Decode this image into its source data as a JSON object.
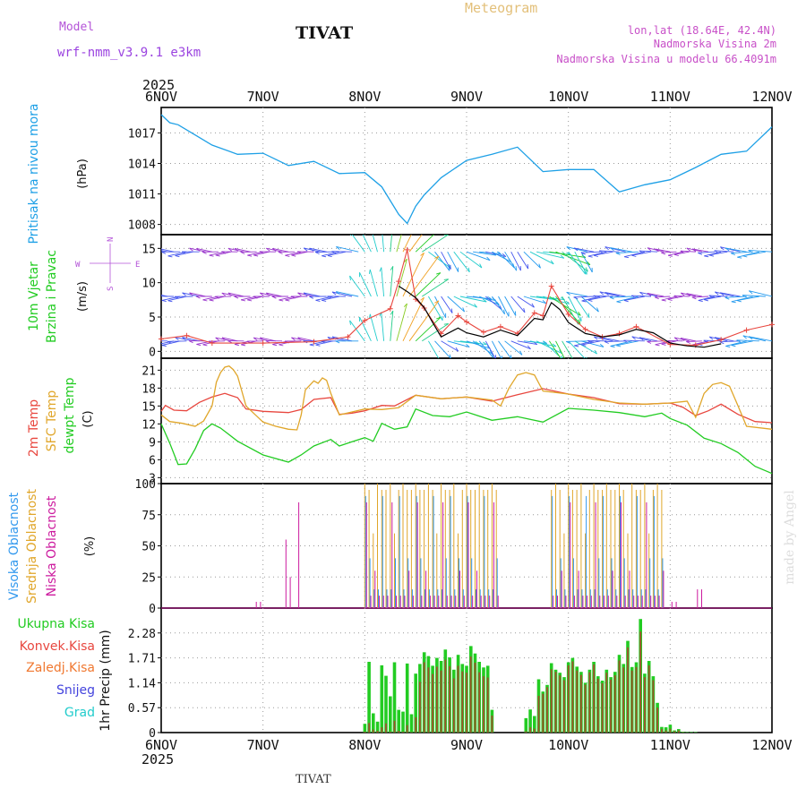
{
  "header": {
    "model_label": "Model",
    "model_name": "wrf-nmm_v3.9.1 e3km",
    "station": "TIVAT",
    "chart_title": "Meteogram",
    "lonlat": "lon,lat (18.64E, 42.4N)",
    "altitude": "Nadmorska Visina 2m",
    "model_altitude": "Nadmorska Visina u modelu 66.4091m"
  },
  "time_axis": {
    "year": "2025",
    "labels": [
      "6NOV",
      "7NOV",
      "8NOV",
      "9NOV",
      "10NOV",
      "11NOV",
      "12NOV"
    ]
  },
  "footer": {
    "station": "TIVAT",
    "credit": "made by Angel"
  },
  "colors": {
    "pressure": "#1ea0e6",
    "wind_green": "#22cc22",
    "temp2m": "#e8473f",
    "sfc": "#e0a62a",
    "dew": "#22cc22",
    "high_cloud": "#3399ee",
    "mid_cloud": "#e0a62a",
    "low_cloud": "#cc1a9e",
    "precip": "#22cc22",
    "convective": "#e8473f",
    "frozen": "#f07830",
    "snow": "#4444dd",
    "hail": "#22cccc",
    "wind_purple": "#9933cc",
    "ws10": "#e8473f",
    "gust": "#000000"
  },
  "chart_data": [
    {
      "type": "line",
      "title": "Pritisak na nivou mora",
      "ylabel": "(hPa)",
      "yticks": [
        "1008",
        "1011",
        "1014",
        "1017"
      ],
      "ylim": [
        1007,
        1019.5
      ],
      "x_hours": [
        0,
        2,
        4,
        8,
        12,
        18,
        24,
        30,
        36,
        42,
        48,
        52,
        56,
        58,
        60,
        62,
        66,
        72,
        78,
        84,
        90,
        96,
        102,
        108,
        114,
        120,
        126,
        132,
        138,
        144
      ],
      "values": [
        1018.8,
        1018,
        1017.8,
        1016.8,
        1015.8,
        1014.9,
        1015,
        1013.8,
        1014.2,
        1013,
        1013.1,
        1011.7,
        1009,
        1008.1,
        1009.8,
        1010.9,
        1012.6,
        1014.3,
        1014.9,
        1015.6,
        1013.2,
        1013.4,
        1013.4,
        1011.2,
        1011.9,
        1012.4,
        1013.6,
        1014.9,
        1015.2,
        1017.6
      ]
    },
    {
      "type": "line",
      "title": "10m Vjetar",
      "subtitle": "Brzina i Pravac",
      "ylabel": "(m/s)",
      "yticks": [
        "0",
        "5",
        "10",
        "15"
      ],
      "ylim": [
        -1,
        17
      ],
      "compass": [
        "N",
        "E",
        "S",
        "W"
      ],
      "x_hours": [
        0,
        6,
        12,
        24,
        36,
        44,
        48,
        54,
        56,
        58,
        60,
        62,
        66,
        70,
        72,
        76,
        80,
        84,
        88,
        90,
        92,
        96,
        100,
        104,
        108,
        112,
        120,
        126,
        132,
        138,
        144
      ],
      "speed": [
        1.8,
        2.3,
        1.2,
        1.2,
        1.4,
        2.1,
        4.5,
        6.2,
        10.2,
        14.8,
        7.6,
        6.3,
        2.6,
        5.2,
        4.3,
        2.8,
        3.6,
        2.6,
        5.6,
        5.2,
        9.5,
        5.4,
        3.2,
        2.1,
        2.6,
        3.6,
        1.0,
        0.9,
        1.7,
        3.1,
        3.9
      ],
      "gust_hours": [
        56,
        58,
        60,
        62,
        64,
        66,
        70,
        72,
        76,
        80,
        84,
        88,
        90,
        92,
        94,
        96,
        100,
        104,
        108,
        112,
        116,
        120,
        124,
        128,
        132
      ],
      "gust": [
        9.5,
        8.7,
        7.8,
        6.4,
        4.2,
        2.1,
        3.4,
        2.7,
        2.1,
        3.1,
        2.3,
        4.8,
        4.6,
        7.1,
        6.1,
        4.2,
        2.6,
        2.1,
        2.4,
        3.2,
        2.7,
        1.2,
        0.8,
        0.6,
        1.1
      ]
    },
    {
      "type": "line",
      "title": "2m Temp / SFC Temp / dewpt Temp",
      "ylabel": "(C)",
      "yticks": [
        "3",
        "6",
        "9",
        "12",
        "15",
        "18",
        "21"
      ],
      "ylim": [
        2,
        23
      ],
      "series": [
        {
          "name": "2m Temp",
          "x_hours": [
            0,
            1,
            3,
            6,
            9,
            12,
            15,
            18,
            20,
            24,
            30,
            33,
            36,
            40,
            42,
            45,
            48,
            52,
            55,
            60,
            66,
            72,
            78,
            84,
            90,
            96,
            102,
            108,
            114,
            120,
            123,
            126,
            129,
            132,
            136,
            140,
            144
          ],
          "values": [
            14.1,
            15.1,
            14.3,
            14.2,
            15.6,
            16.5,
            17.1,
            16.4,
            14.5,
            14.1,
            13.9,
            14.4,
            16.1,
            16.4,
            13.6,
            13.8,
            14.2,
            15.1,
            15,
            16.8,
            16.2,
            16.5,
            15.8,
            16.9,
            17.9,
            17,
            16.4,
            15.4,
            15.3,
            15.5,
            14.8,
            13.4,
            14.2,
            15.3,
            13.6,
            12.4,
            12.2
          ]
        },
        {
          "name": "SFC Temp",
          "x_hours": [
            0,
            2,
            5,
            8,
            10,
            12,
            13,
            14,
            15,
            16,
            17,
            18,
            20,
            24,
            27,
            30,
            32,
            33,
            34,
            36,
            37,
            38,
            39,
            40,
            42,
            45,
            48,
            52,
            56,
            60,
            66,
            72,
            78,
            80,
            82,
            84,
            86,
            88,
            90,
            96,
            102,
            108,
            114,
            120,
            124,
            126,
            128,
            130,
            132,
            134,
            136,
            138,
            144
          ],
          "values": [
            13.5,
            12.4,
            12.1,
            11.6,
            12.5,
            15,
            19,
            20.6,
            21.5,
            21.7,
            21.1,
            20,
            15,
            12.3,
            11.6,
            11.1,
            11,
            13.5,
            17.7,
            19.2,
            18.8,
            19.7,
            19.3,
            17.1,
            13.5,
            14,
            14.5,
            14.4,
            14.7,
            16.8,
            16.2,
            16.5,
            16,
            15,
            18,
            20.2,
            20.6,
            20.2,
            17.5,
            17,
            16.1,
            15.5,
            15.3,
            15.5,
            15.8,
            13.1,
            17.1,
            18.6,
            18.9,
            18.3,
            15,
            11.6,
            11.1
          ]
        },
        {
          "name": "dewpt Temp",
          "x_hours": [
            0,
            2,
            4,
            6,
            8,
            10,
            12,
            14,
            18,
            24,
            30,
            33,
            36,
            40,
            42,
            45,
            48,
            50,
            52,
            55,
            58,
            60,
            64,
            68,
            72,
            78,
            84,
            90,
            96,
            102,
            108,
            114,
            118,
            120,
            124,
            128,
            132,
            136,
            140,
            144
          ],
          "values": [
            12,
            8.8,
            5.2,
            5.3,
            7.8,
            10.9,
            12,
            11.3,
            9.1,
            6.8,
            5.6,
            6.8,
            8.3,
            9.4,
            8.3,
            9,
            9.7,
            9.1,
            12.1,
            11.1,
            11.5,
            14.5,
            13.4,
            13.2,
            14,
            12.6,
            13.2,
            12.3,
            14.6,
            14.3,
            13.9,
            13.2,
            13.8,
            12.9,
            11.8,
            9.6,
            8.7,
            7.2,
            4.9,
            3.7
          ]
        }
      ]
    },
    {
      "type": "bar",
      "title": "Visoka / Srednja / Niska Oblacnost",
      "ylabel": "(%)",
      "yticks": [
        "0",
        "25",
        "50",
        "75",
        "100"
      ],
      "ylim": [
        0,
        100
      ],
      "note": "hourly cloud fraction (percent) for high, middle and low cloud; bars shown as outline hairlines in the original"
    },
    {
      "type": "bar",
      "title": "1hr Precip",
      "ylabel": "(mm)",
      "yticks": [
        "0",
        "0.57",
        "1.14",
        "1.71",
        "2.28"
      ],
      "ylim": [
        0,
        2.85
      ],
      "legend": [
        "Ukupna Kisa",
        "Konvek.Kisa",
        "Zaledj.Kisa",
        "Snijeg",
        "Grad"
      ],
      "x_hours": [
        48,
        49,
        50,
        51,
        52,
        53,
        54,
        55,
        56,
        57,
        58,
        59,
        60,
        61,
        62,
        63,
        64,
        65,
        66,
        67,
        68,
        69,
        70,
        71,
        72,
        73,
        74,
        75,
        76,
        77,
        78,
        86,
        87,
        88,
        89,
        90,
        91,
        92,
        93,
        94,
        95,
        96,
        97,
        98,
        99,
        100,
        101,
        102,
        103,
        104,
        105,
        106,
        107,
        108,
        109,
        110,
        111,
        112,
        113,
        114,
        115,
        116,
        117,
        118,
        119,
        120,
        121,
        122,
        123,
        124,
        125,
        126
      ],
      "values": [
        0.2,
        1.62,
        0.44,
        0.25,
        1.54,
        1.3,
        0.83,
        1.61,
        0.52,
        0.48,
        1.58,
        0.42,
        1.35,
        1.57,
        1.84,
        1.75,
        1.53,
        1.71,
        1.64,
        1.9,
        1.72,
        1.44,
        1.78,
        1.57,
        1.53,
        1.98,
        1.81,
        1.62,
        1.49,
        1.53,
        0.52,
        0.33,
        0.53,
        0.38,
        1.22,
        0.94,
        1.09,
        1.59,
        1.44,
        1.37,
        1.27,
        1.61,
        1.71,
        1.51,
        1.39,
        1.14,
        1.44,
        1.62,
        1.29,
        1.19,
        1.44,
        1.27,
        1.39,
        1.78,
        1.57,
        2.1,
        1.5,
        1.61,
        2.6,
        1.35,
        1.64,
        1.29,
        0.68,
        0.13,
        0.12,
        0.18,
        0.05,
        0.08,
        0.02,
        0.01,
        0.01,
        0.01
      ],
      "convective": [
        0.02,
        0.22,
        0.07,
        0.04,
        0.12,
        0.21,
        0.02,
        0.27,
        0.04,
        0.02,
        0.17,
        0.01,
        0.35,
        1.16,
        1.61,
        1.49,
        1.34,
        1.51,
        1.42,
        1.67,
        1.52,
        1.24,
        1.53,
        1.4,
        1.37,
        1.74,
        1.6,
        1.38,
        1.29,
        1.26,
        0.39,
        0.03,
        0.12,
        0.09,
        0.84,
        0.89,
        1.04,
        1.45,
        1.39,
        1.31,
        1.2,
        1.54,
        1.63,
        1.42,
        1.32,
        1.1,
        1.38,
        1.56,
        1.23,
        1.13,
        1.37,
        1.21,
        1.31,
        1.65,
        1.49,
        1.95,
        1.42,
        1.5,
        2.31,
        1.27,
        1.54,
        1.2,
        0.57,
        0.08,
        0.05,
        0.09,
        0.03,
        0.05,
        0.01,
        0,
        0,
        0
      ]
    }
  ]
}
